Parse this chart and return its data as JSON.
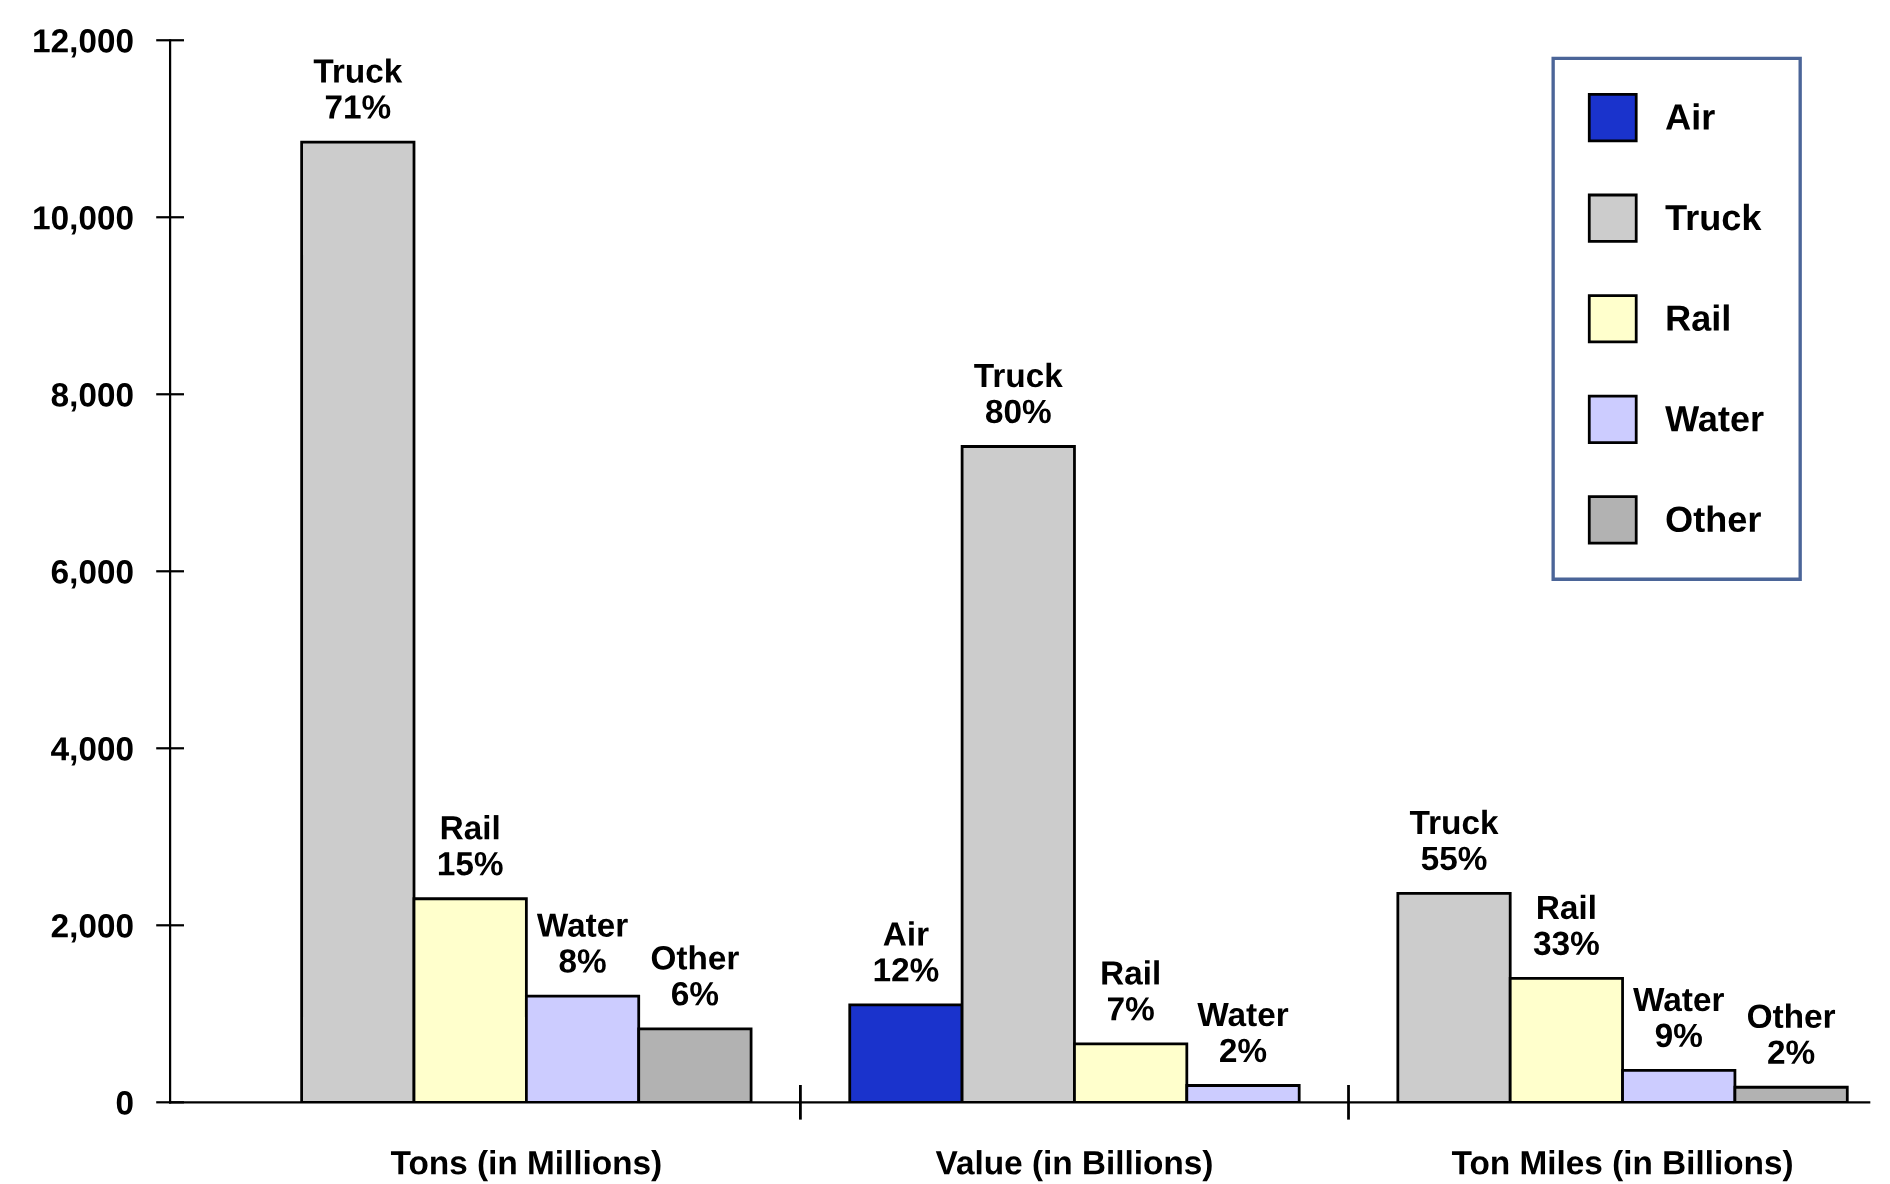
{
  "chart_data": {
    "type": "bar",
    "categories": [
      "Tons (in Millions)",
      "Value (in Billions)",
      "Ton Miles (in Billions)"
    ],
    "series": [
      {
        "name": "Air",
        "color": "#1a33cc",
        "values": [
          null,
          1100,
          null
        ],
        "value_labels": [
          null,
          "Air\n12%",
          null
        ]
      },
      {
        "name": "Truck",
        "color": "#cccccc",
        "values": [
          10850,
          7410,
          2360
        ],
        "value_labels": [
          "Truck\n71%",
          "Truck\n80%",
          "Truck\n55%"
        ]
      },
      {
        "name": "Rail",
        "color": "#ffffcc",
        "values": [
          2300,
          660,
          1400
        ],
        "value_labels": [
          "Rail\n15%",
          "Rail\n7%",
          "Rail\n33%"
        ]
      },
      {
        "name": "Water",
        "color": "#ccccff",
        "values": [
          1200,
          190,
          360
        ],
        "value_labels": [
          "Water\n8%",
          "Water\n2%",
          "Water\n9%"
        ]
      },
      {
        "name": "Other",
        "color": "#b2b2b2",
        "values": [
          830,
          null,
          170
        ],
        "value_labels": [
          "Other\n6%",
          null,
          "Other\n2%"
        ]
      }
    ],
    "ylim": [
      0,
      12000
    ],
    "yticks": [
      {
        "value": 0,
        "label": "0"
      },
      {
        "value": 2000,
        "label": "2,000"
      },
      {
        "value": 4000,
        "label": "4,000"
      },
      {
        "value": 6000,
        "label": "6,000"
      },
      {
        "value": 8000,
        "label": "8,000"
      },
      {
        "value": 10000,
        "label": "10,000"
      },
      {
        "value": 12000,
        "label": "12,000"
      }
    ],
    "grid": false,
    "legend": "top right"
  }
}
